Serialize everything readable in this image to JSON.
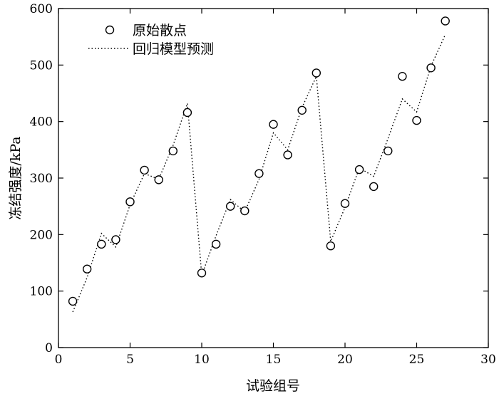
{
  "chart_data": {
    "type": "scatter",
    "title": "",
    "xlabel": "试验组号",
    "ylabel": "冻结强度/kPa",
    "xlim": [
      0,
      30
    ],
    "ylim": [
      0,
      600
    ],
    "xticks": [
      0,
      5,
      10,
      15,
      20,
      25,
      30
    ],
    "yticks": [
      0,
      100,
      200,
      300,
      400,
      500,
      600
    ],
    "legend_position": "top-left",
    "series": [
      {
        "name": "原始散点",
        "style": "open-circle",
        "color": "#000000",
        "x": [
          1,
          2,
          3,
          4,
          5,
          6,
          7,
          8,
          9,
          10,
          11,
          12,
          13,
          14,
          15,
          16,
          17,
          18,
          19,
          20,
          21,
          22,
          23,
          24,
          25,
          26,
          27
        ],
        "y": [
          82,
          139,
          183,
          191,
          258,
          314,
          297,
          348,
          416,
          132,
          183,
          250,
          242,
          308,
          395,
          341,
          420,
          486,
          180,
          255,
          315,
          285,
          348,
          480,
          402,
          495,
          578
        ]
      },
      {
        "name": "回归模型预测",
        "style": "dotted-line",
        "color": "#000000",
        "x": [
          1,
          2,
          3,
          4,
          5,
          6,
          7,
          8,
          9,
          10,
          11,
          12,
          13,
          14,
          15,
          16,
          17,
          18,
          19,
          20,
          21,
          22,
          23,
          24,
          25,
          26,
          27
        ],
        "y": [
          63,
          124,
          202,
          178,
          253,
          308,
          298,
          358,
          432,
          128,
          198,
          262,
          240,
          298,
          380,
          350,
          425,
          480,
          188,
          248,
          318,
          303,
          370,
          440,
          417,
          498,
          554
        ]
      }
    ]
  }
}
